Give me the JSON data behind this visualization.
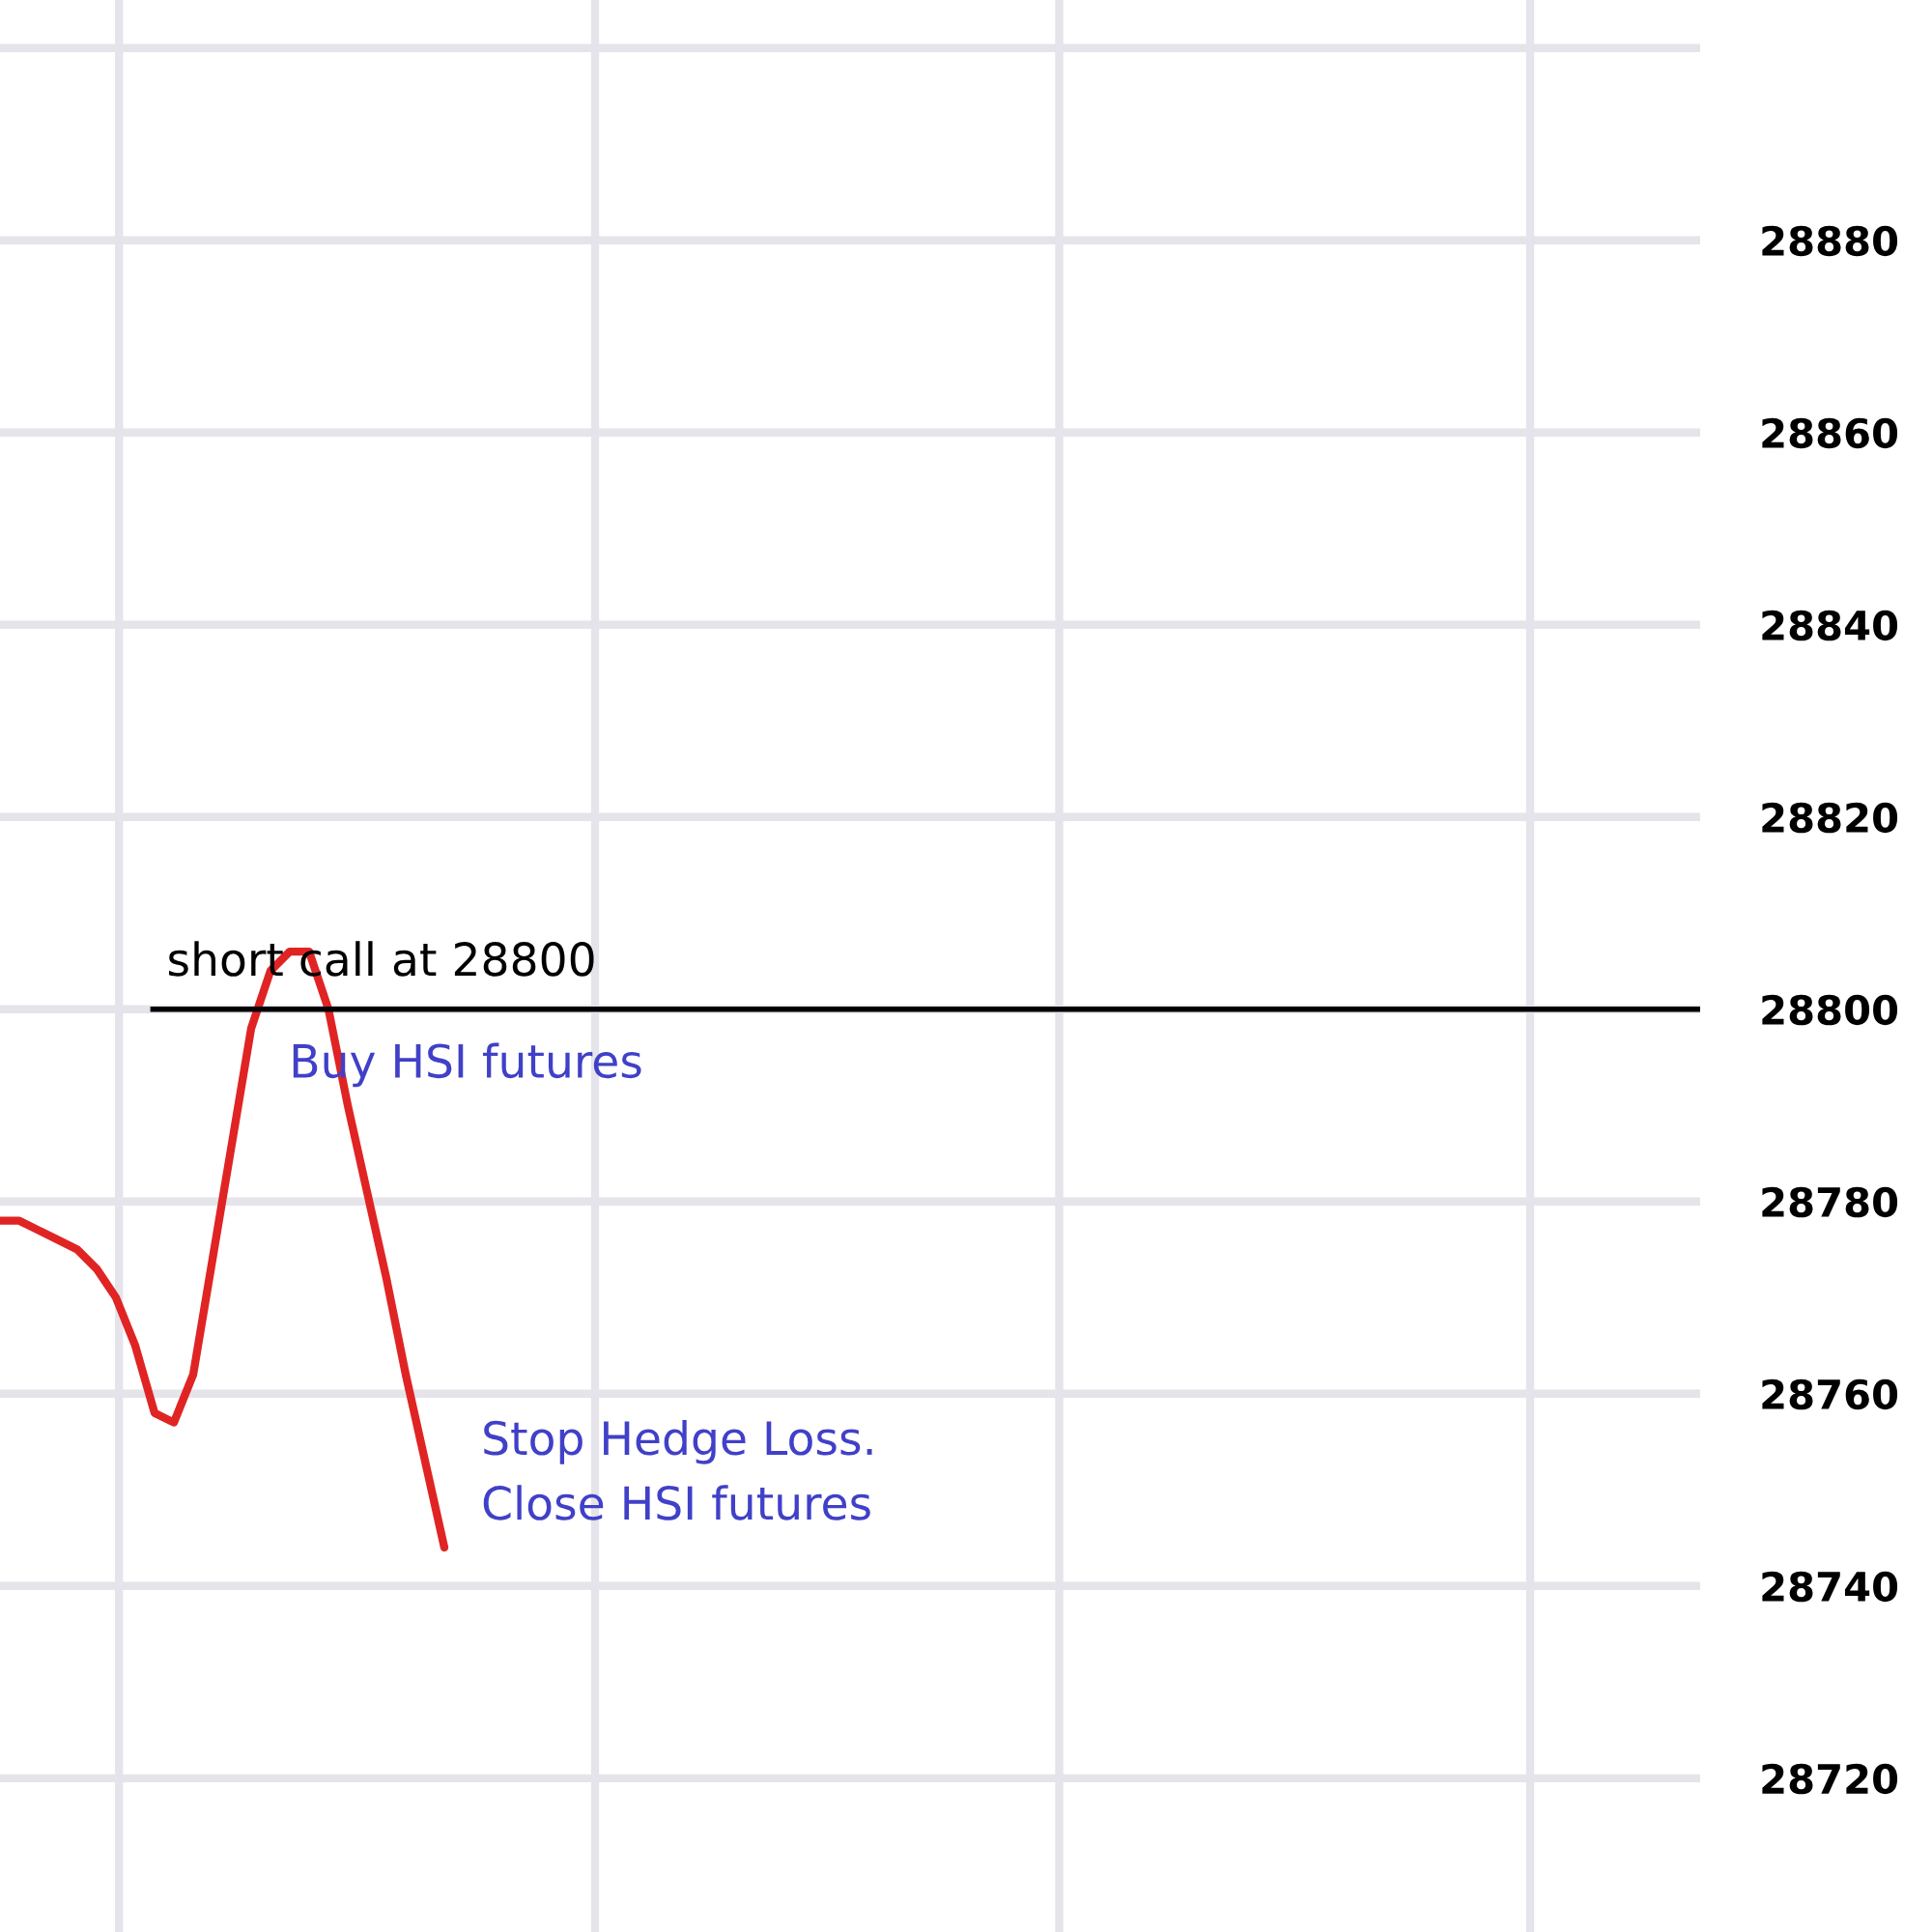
{
  "chart_data": {
    "type": "line",
    "categories": [
      null,
      null,
      null,
      null,
      null,
      null,
      null,
      null,
      null,
      null,
      null,
      null,
      null,
      null,
      null,
      null,
      null,
      null,
      null,
      null,
      null,
      null,
      null,
      null,
      null,
      null,
      null,
      null,
      null,
      null,
      null,
      null,
      null,
      null,
      null,
      null,
      null,
      null,
      null,
      null,
      null,
      null,
      null,
      null,
      null,
      null,
      null,
      null,
      null,
      null,
      null,
      null,
      null,
      null,
      null,
      null,
      null,
      null,
      null,
      null,
      null,
      null,
      null,
      null,
      null,
      null,
      null,
      null,
      null,
      null,
      null,
      null,
      null,
      null,
      null,
      null,
      null,
      null,
      null,
      null,
      null,
      null,
      null,
      null,
      null,
      null,
      null,
      null,
      null
    ],
    "series": [
      {
        "color": "#e02424",
        "values": [
          28778,
          28778,
          28777,
          28776,
          28775,
          28773,
          28770,
          28765,
          28758,
          28757,
          28762,
          28774,
          28786,
          28798,
          28804,
          28806,
          28806,
          28800,
          28790,
          28781,
          28772,
          28762,
          28753,
          28744,
          null,
          null,
          null,
          null,
          null,
          null,
          null,
          null,
          null,
          null,
          null,
          null,
          null,
          null,
          null,
          null,
          null,
          null,
          null,
          null,
          null,
          null,
          null,
          null,
          null,
          null,
          null,
          null,
          null,
          null,
          null,
          null,
          null,
          null,
          null,
          null,
          null,
          null,
          null,
          null,
          null,
          null,
          null,
          null,
          null,
          null,
          null,
          null,
          null,
          null,
          null,
          null,
          null,
          null,
          null,
          null,
          null,
          null,
          null,
          null,
          null,
          null,
          null,
          null,
          null
        ]
      }
    ],
    "ylim": [
      28704,
      28905
    ],
    "yticks": [
      28720,
      28740,
      28760,
      28780,
      28800,
      28820,
      28840,
      28860,
      28880,
      {
        "value": 28900,
        "label": null
      }
    ],
    "tick_labels": "y",
    "grid": true,
    "ref_lines": [
      {
        "axis": "y",
        "value": 28800,
        "label": "short call at 28800",
        "color": "#000000"
      }
    ],
    "annotations": [
      {
        "text": "Buy HSI futures",
        "y": 28800
      },
      "Stop Hedge Loss.\nClose HSI futures"
    ]
  }
}
